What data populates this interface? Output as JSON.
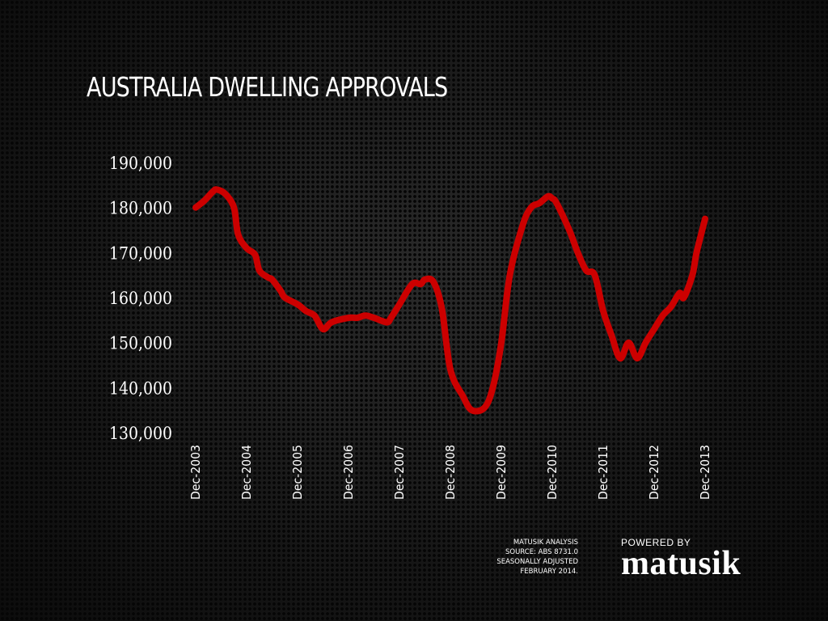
{
  "chart_data": {
    "type": "line",
    "title": "AUSTRALIA DWELLING APPROVALS",
    "xlabel": "",
    "ylabel": "",
    "ylim": [
      130000,
      190000
    ],
    "y_ticks": [
      "190,000",
      "180,000",
      "170,000",
      "160,000",
      "150,000",
      "140,000",
      "130,000"
    ],
    "y_tick_values": [
      190000,
      180000,
      170000,
      160000,
      150000,
      140000,
      130000
    ],
    "x_ticks": [
      "Dec-2003",
      "Dec-2004",
      "Dec-2005",
      "Dec-2006",
      "Dec-2007",
      "Dec-2008",
      "Dec-2009",
      "Dec-2010",
      "Dec-2011",
      "Dec-2012",
      "Dec-2013"
    ],
    "grid": false,
    "legend": "none",
    "line_color": "#cc0000",
    "series": [
      {
        "x": [
          "Dec-2003",
          "Feb-2004",
          "Apr-2004",
          "May-2004",
          "Jul-2004",
          "Sep-2004",
          "Oct-2004",
          "Dec-2004",
          "Feb-2005",
          "Mar-2005",
          "May-2005",
          "Jun-2005",
          "Aug-2005",
          "Sep-2005",
          "Dec-2005",
          "Feb-2006",
          "Apr-2006",
          "Jun-2006",
          "Aug-2006",
          "Dec-2006",
          "Feb-2007",
          "Apr-2007",
          "Jun-2007",
          "Sep-2007",
          "Oct-2007",
          "Dec-2007",
          "Mar-2008",
          "May-2008",
          "Jun-2008",
          "Aug-2008",
          "Oct-2008",
          "Dec-2008",
          "Mar-2009",
          "May-2009",
          "Aug-2009",
          "Oct-2009",
          "Dec-2009",
          "Feb-2010",
          "May-2010",
          "Jul-2010",
          "Sep-2010",
          "Nov-2010",
          "Dec-2010",
          "Jan-2011",
          "Apr-2011",
          "Jun-2011",
          "Aug-2011",
          "Oct-2011",
          "Dec-2011",
          "Feb-2012",
          "Apr-2012",
          "Jun-2012",
          "Aug-2012",
          "Oct-2012",
          "Dec-2012",
          "Feb-2013",
          "Apr-2013",
          "Jun-2013",
          "Jul-2013",
          "Sep-2013",
          "Oct-2013",
          "Dec-2013"
        ],
        "values": [
          180000,
          181500,
          183500,
          184000,
          183000,
          180000,
          174000,
          171000,
          169500,
          166000,
          164500,
          164000,
          161500,
          160000,
          158500,
          157000,
          156000,
          153000,
          154500,
          155500,
          155500,
          156000,
          155500,
          154500,
          155500,
          158500,
          163000,
          163000,
          164000,
          163500,
          157500,
          144000,
          138000,
          135000,
          135500,
          140000,
          150000,
          165000,
          176000,
          180000,
          181000,
          182500,
          182000,
          181000,
          175000,
          170000,
          166000,
          165000,
          157000,
          151500,
          146500,
          150000,
          146500,
          150000,
          153000,
          156000,
          158000,
          161000,
          160000,
          165000,
          170000,
          177500
        ]
      }
    ]
  },
  "footer": {
    "source_lines": [
      "MATUSIK ANALYSIS",
      "SOURCE: ABS 8731.0",
      "SEASONALLY ADJUSTED",
      "FEBRUARY 2014."
    ],
    "logo_powered": "POWERED BY",
    "logo_word": "matusik"
  }
}
